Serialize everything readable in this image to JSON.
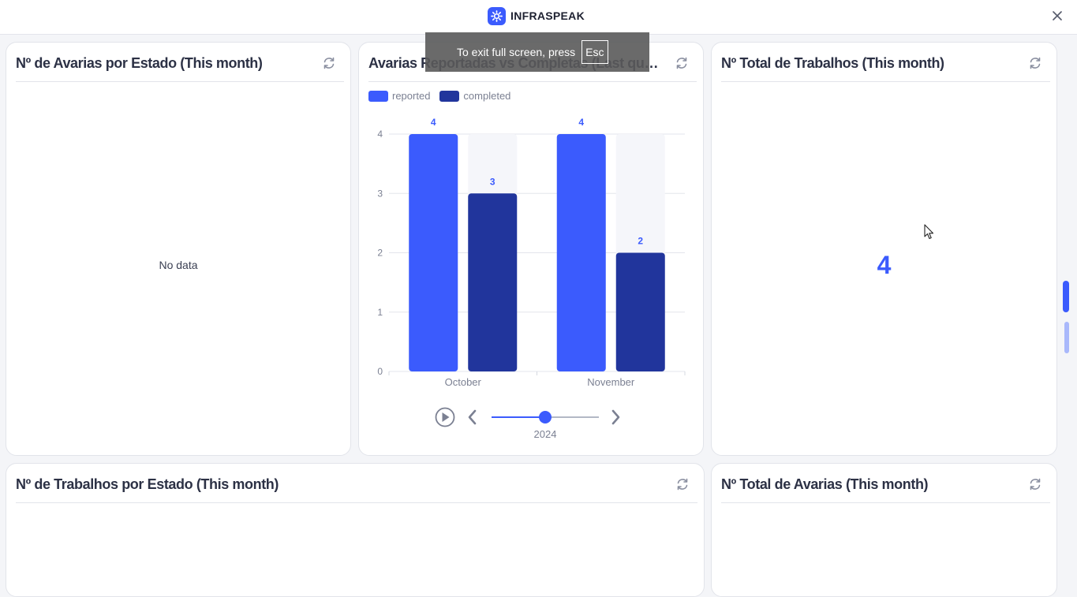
{
  "brand": {
    "name": "INFRASPEAK"
  },
  "cards": {
    "avarias_estado": {
      "title": "Nº de Avarias por Estado (This month)",
      "empty_text": "No data"
    },
    "reportadas_completas": {
      "title": "Avarias Reportadas vs Completas (Last quart..."
    },
    "total_trabalhos": {
      "title": "Nº Total de Trabalhos (This month)",
      "value": "4"
    },
    "trabalhos_estado": {
      "title": "Nº de Trabalhos por Estado (This month)"
    },
    "total_avarias": {
      "title": "Nº Total de Avarias (This month)"
    }
  },
  "toast": {
    "text": "To exit full screen, press",
    "key": "Esc"
  },
  "timeline": {
    "year": "2024"
  },
  "colors": {
    "reported": "#3b5bfd",
    "completed": "#21359c",
    "accent": "#3b5bfd"
  },
  "chart_data": {
    "type": "bar",
    "categories": [
      "October",
      "November"
    ],
    "series": [
      {
        "name": "reported",
        "values": [
          4,
          4
        ]
      },
      {
        "name": "completed",
        "values": [
          3,
          2
        ]
      }
    ],
    "ylim": [
      0,
      4
    ],
    "yticks": [
      "0",
      "1",
      "2",
      "3",
      "4"
    ],
    "grid": true,
    "legend": "top-left"
  }
}
